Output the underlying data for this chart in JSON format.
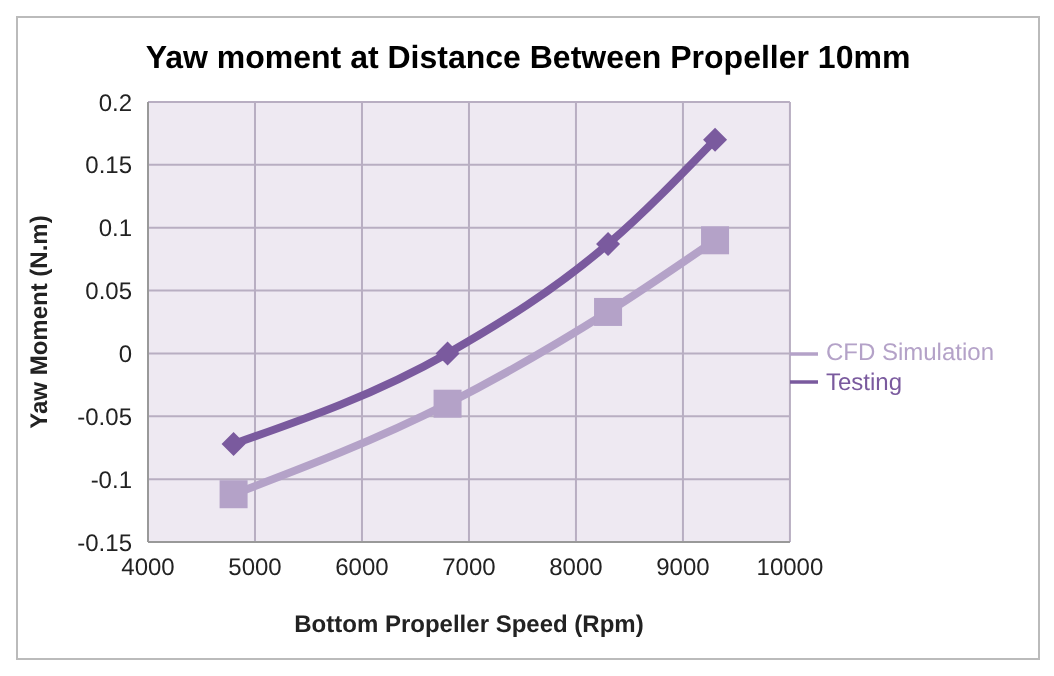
{
  "chart_data": {
    "type": "line",
    "title": "Yaw moment at Distance Between Propeller 10mm",
    "xlabel": "Bottom Propeller Speed (Rpm)",
    "ylabel": "Yaw Moment (N.m)",
    "series": [
      {
        "name": "Testing",
        "color": "#7a5a9e",
        "marker": "diamond",
        "x": [
          4800,
          6800,
          8300,
          9300
        ],
        "values": [
          -0.072,
          0,
          0.087,
          0.17
        ]
      },
      {
        "name": "CFD Simulation",
        "color": "#b4a2c8",
        "marker": "square",
        "x": [
          4800,
          6800,
          8300,
          9300
        ],
        "values": [
          -0.112,
          -0.04,
          0.033,
          0.09
        ]
      }
    ],
    "xlim": [
      4000,
      10000
    ],
    "xticks": [
      4000,
      5000,
      6000,
      7000,
      8000,
      9000,
      10000
    ],
    "ylim": [
      -0.15,
      0.2
    ],
    "yticks": [
      -0.15,
      -0.1,
      -0.05,
      0,
      0.05,
      0.1,
      0.15,
      0.2
    ],
    "grid": true,
    "legend": "right"
  }
}
